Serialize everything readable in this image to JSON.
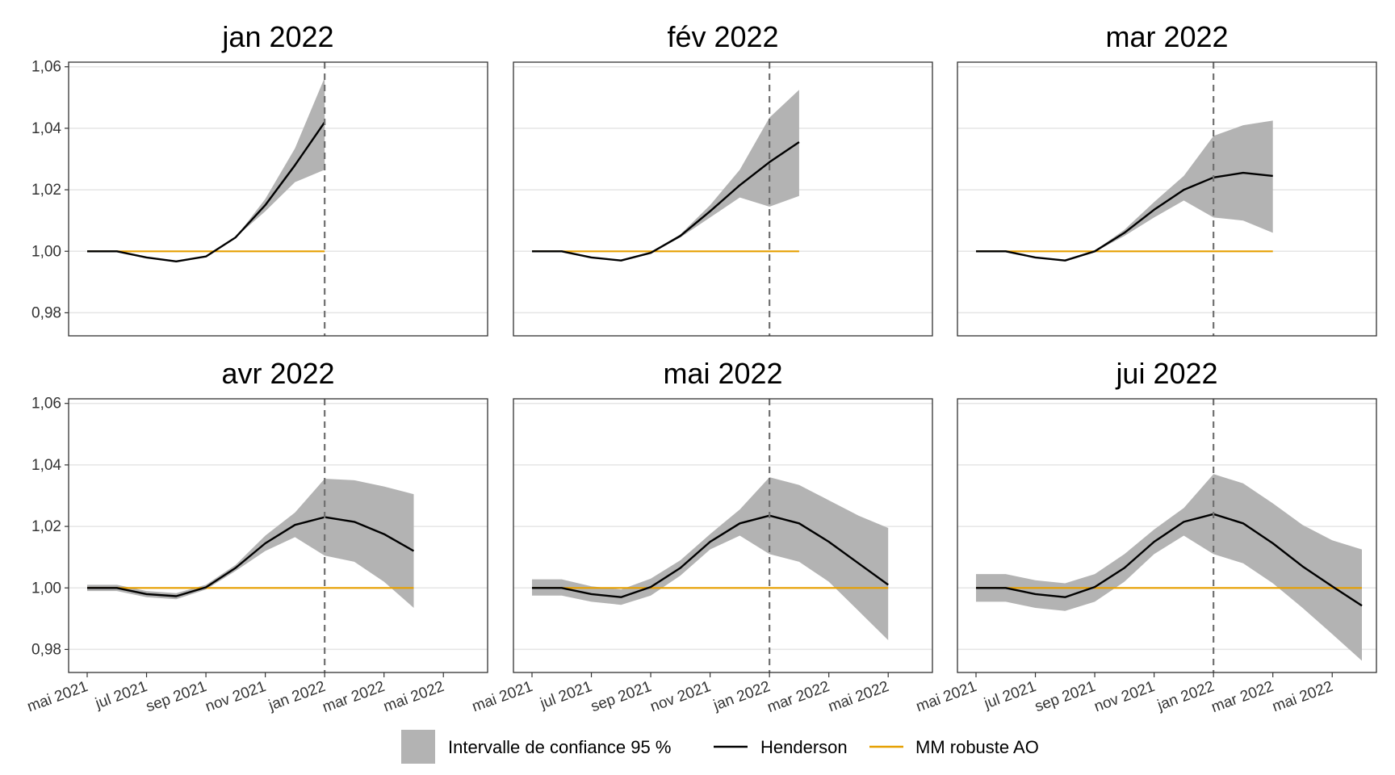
{
  "chart_data": {
    "type": "line",
    "panels": [
      {
        "title": "jan 2022",
        "x": [
          "2021-05",
          "2021-06",
          "2021-07",
          "2021-08",
          "2021-09",
          "2021-10",
          "2021-11",
          "2021-12",
          "2022-01"
        ],
        "henderson": [
          1.0,
          1.0,
          0.998,
          0.9967,
          0.9983,
          1.0045,
          1.015,
          1.028,
          1.042
        ],
        "ci_low": [
          0.9998,
          0.9998,
          0.998,
          0.9967,
          0.9983,
          1.0045,
          1.013,
          1.0225,
          1.0265
        ],
        "ci_high": [
          1.0003,
          1.0003,
          0.998,
          0.9967,
          0.9983,
          1.0045,
          1.017,
          1.0335,
          1.0565
        ],
        "mm_robuste": [
          1.0,
          1.0,
          1.0,
          1.0,
          1.0,
          1.0,
          1.0,
          1.0,
          1.0
        ]
      },
      {
        "title": "fév 2022",
        "x": [
          "2021-05",
          "2021-06",
          "2021-07",
          "2021-08",
          "2021-09",
          "2021-10",
          "2021-11",
          "2021-12",
          "2022-01",
          "2022-02"
        ],
        "henderson": [
          1.0,
          1.0,
          0.998,
          0.997,
          0.9995,
          1.005,
          1.013,
          1.0215,
          1.029,
          1.0355
        ],
        "ci_low": [
          0.9998,
          0.9998,
          0.998,
          0.997,
          0.9993,
          1.0045,
          1.011,
          1.0175,
          1.0145,
          1.018
        ],
        "ci_high": [
          1.0003,
          1.0003,
          0.998,
          0.997,
          0.9997,
          1.0055,
          1.015,
          1.0265,
          1.0435,
          1.0525
        ],
        "mm_robuste": [
          1.0,
          1.0,
          1.0,
          1.0,
          1.0,
          1.0,
          1.0,
          1.0,
          1.0,
          1.0
        ]
      },
      {
        "title": "mar 2022",
        "x": [
          "2021-05",
          "2021-06",
          "2021-07",
          "2021-08",
          "2021-09",
          "2021-10",
          "2021-11",
          "2021-12",
          "2022-01",
          "2022-02",
          "2022-03"
        ],
        "henderson": [
          1.0,
          1.0,
          0.998,
          0.997,
          1.0,
          1.006,
          1.0135,
          1.02,
          1.024,
          1.0255,
          1.0245
        ],
        "ci_low": [
          0.9998,
          0.9998,
          0.998,
          0.997,
          0.9998,
          1.005,
          1.011,
          1.0165,
          1.011,
          1.01,
          1.006
        ],
        "ci_high": [
          1.0003,
          1.0003,
          0.998,
          0.997,
          1.0002,
          1.007,
          1.016,
          1.0245,
          1.0375,
          1.041,
          1.0425
        ],
        "mm_robuste": [
          1.0,
          1.0,
          1.0,
          1.0,
          1.0,
          1.0,
          1.0,
          1.0,
          1.0,
          1.0,
          1.0
        ]
      },
      {
        "title": "avr 2022",
        "x": [
          "2021-05",
          "2021-06",
          "2021-07",
          "2021-08",
          "2021-09",
          "2021-10",
          "2021-11",
          "2021-12",
          "2022-01",
          "2022-02",
          "2022-03",
          "2022-04"
        ],
        "henderson": [
          1.0,
          1.0,
          0.998,
          0.9973,
          1.0002,
          1.0065,
          1.0145,
          1.0205,
          1.023,
          1.0215,
          1.0175,
          1.012
        ],
        "ci_low": [
          0.999,
          0.999,
          0.997,
          0.9963,
          0.9995,
          1.0055,
          1.012,
          1.0165,
          1.0105,
          1.0085,
          1.002,
          0.9935
        ],
        "ci_high": [
          1.001,
          1.001,
          0.999,
          0.9983,
          1.001,
          1.0075,
          1.017,
          1.0245,
          1.0355,
          1.035,
          1.033,
          1.0305
        ],
        "mm_robuste": [
          1.0,
          1.0,
          1.0,
          1.0,
          1.0,
          1.0,
          1.0,
          1.0,
          1.0,
          1.0,
          1.0,
          1.0
        ]
      },
      {
        "title": "mai 2022",
        "x": [
          "2021-05",
          "2021-06",
          "2021-07",
          "2021-08",
          "2021-09",
          "2021-10",
          "2021-11",
          "2021-12",
          "2022-01",
          "2022-02",
          "2022-03",
          "2022-04",
          "2022-05"
        ],
        "henderson": [
          1.0,
          1.0,
          0.998,
          0.997,
          1.0003,
          1.0065,
          1.015,
          1.021,
          1.0235,
          1.021,
          1.015,
          1.008,
          1.001
        ],
        "ci_low": [
          0.9975,
          0.9975,
          0.9955,
          0.9945,
          0.9975,
          1.004,
          1.0125,
          1.017,
          1.011,
          1.0085,
          1.002,
          0.9925,
          0.983
        ],
        "ci_high": [
          1.0028,
          1.0028,
          1.0005,
          0.9995,
          1.003,
          1.009,
          1.0175,
          1.0255,
          1.036,
          1.0335,
          1.0285,
          1.0235,
          1.0195
        ],
        "mm_robuste": [
          1.0,
          1.0,
          1.0,
          1.0,
          1.0,
          1.0,
          1.0,
          1.0,
          1.0,
          1.0,
          1.0,
          1.0,
          1.0
        ]
      },
      {
        "title": "jui 2022",
        "x": [
          "2021-05",
          "2021-06",
          "2021-07",
          "2021-08",
          "2021-09",
          "2021-10",
          "2021-11",
          "2021-12",
          "2022-01",
          "2022-02",
          "2022-03",
          "2022-04",
          "2022-05",
          "2022-06"
        ],
        "henderson": [
          1.0,
          1.0,
          0.998,
          0.997,
          1.0003,
          1.0065,
          1.015,
          1.0215,
          1.024,
          1.021,
          1.0145,
          1.007,
          1.0005,
          0.9942
        ],
        "ci_low": [
          0.9955,
          0.9955,
          0.9935,
          0.9925,
          0.9955,
          1.002,
          1.011,
          1.017,
          1.011,
          1.008,
          1.0015,
          0.9935,
          0.985,
          0.9763
        ],
        "ci_high": [
          1.0045,
          1.0045,
          1.0025,
          1.0015,
          1.0045,
          1.011,
          1.019,
          1.026,
          1.037,
          1.034,
          1.0275,
          1.0205,
          1.0155,
          1.0125
        ],
        "mm_robuste": [
          1.0,
          1.0,
          1.0,
          1.0,
          1.0,
          1.0,
          1.0,
          1.0,
          1.0,
          1.0,
          1.0,
          1.0,
          1.0,
          1.0
        ]
      }
    ],
    "x_axis": {
      "ticks": [
        "2021-05",
        "2021-07",
        "2021-09",
        "2021-11",
        "2022-01",
        "2022-03",
        "2022-05"
      ],
      "tick_labels": [
        "mai 2021",
        "jul 2021",
        "sep 2021",
        "nov 2021",
        "jan 2022",
        "mar 2022",
        "mai 2022"
      ],
      "range": [
        "2021-05",
        "2022-06"
      ]
    },
    "y_axis": {
      "ticks": [
        0.98,
        1.0,
        1.02,
        1.04,
        1.06
      ],
      "tick_labels": [
        "0,98",
        "1,00",
        "1,02",
        "1,04",
        "1,06"
      ],
      "range": [
        0.9725,
        1.0615
      ]
    },
    "vline_x": "2022-01",
    "grid": true,
    "legend": {
      "position": "bottom",
      "ci_label": "Intervalle de confiance 95 %",
      "henderson_label": "Henderson",
      "mm_label": "MM robuste AO"
    },
    "colors": {
      "ci_fill": "#b3b3b3",
      "henderson": "#000000",
      "mm_robuste": "#e69f00",
      "vline": "#707070",
      "grid": "#e5e5e5",
      "panel_border": "#333333"
    }
  }
}
